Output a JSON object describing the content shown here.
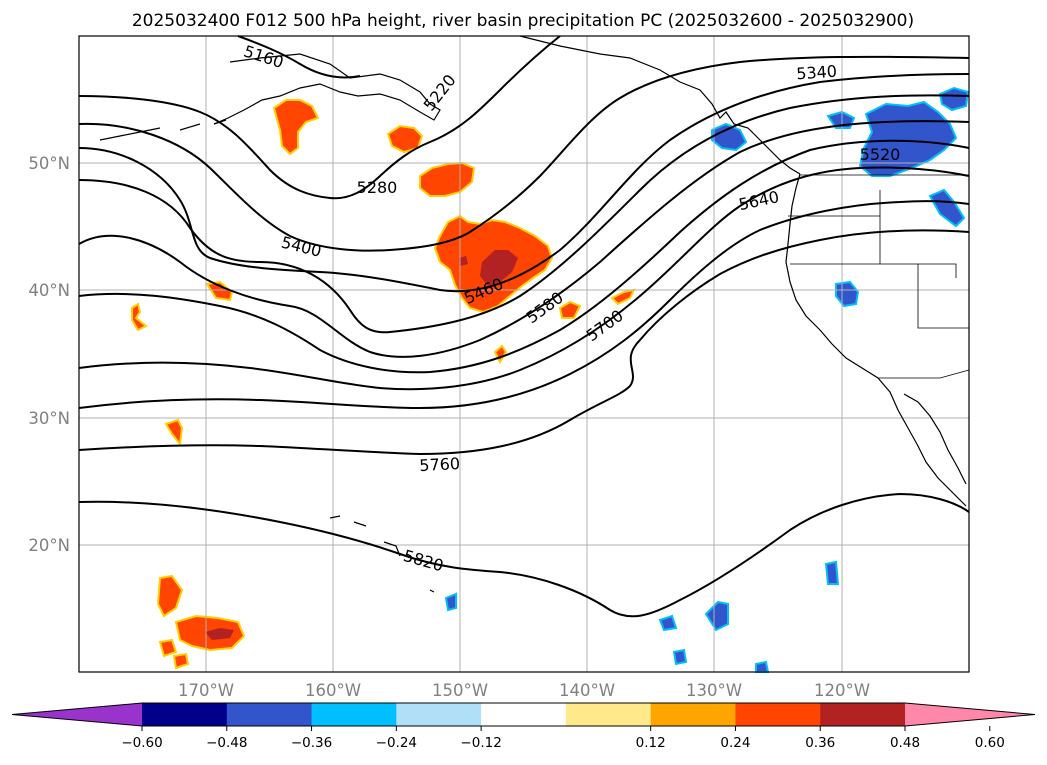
{
  "title": "2025032400 F012 500 hPa height, river basin precipitation PC (2025032600 - 2025032900)",
  "map": {
    "projection": "PlateCarree",
    "lon_range": [
      -180,
      -110
    ],
    "lat_range": [
      10,
      60
    ],
    "gridlines": true,
    "lat_ticks": [
      "20°N",
      "30°N",
      "40°N",
      "50°N"
    ],
    "lon_ticks": [
      "170°W",
      "160°W",
      "150°W",
      "140°W",
      "130°W",
      "120°W"
    ]
  },
  "contours": {
    "field": "500 hPa height",
    "color": "#000000",
    "labels": [
      "5160",
      "5220",
      "5280",
      "5340",
      "5400",
      "5460",
      "5520",
      "5580",
      "5640",
      "5700",
      "5760",
      "5820"
    ]
  },
  "colorbar": {
    "orientation": "horizontal",
    "extend": "both",
    "colors": [
      "#9933cc",
      "#00008b",
      "#3355cc",
      "#00bfff",
      "#b0e0f8",
      "#ffffff",
      "#ffe98a",
      "#ffa500",
      "#ff4500",
      "#b22222",
      "#ff88aa"
    ],
    "tick_labels": [
      "−0.60",
      "−0.48",
      "−0.36",
      "−0.24",
      "−0.12",
      "0.12",
      "0.24",
      "0.36",
      "0.48",
      "0.60"
    ]
  }
}
